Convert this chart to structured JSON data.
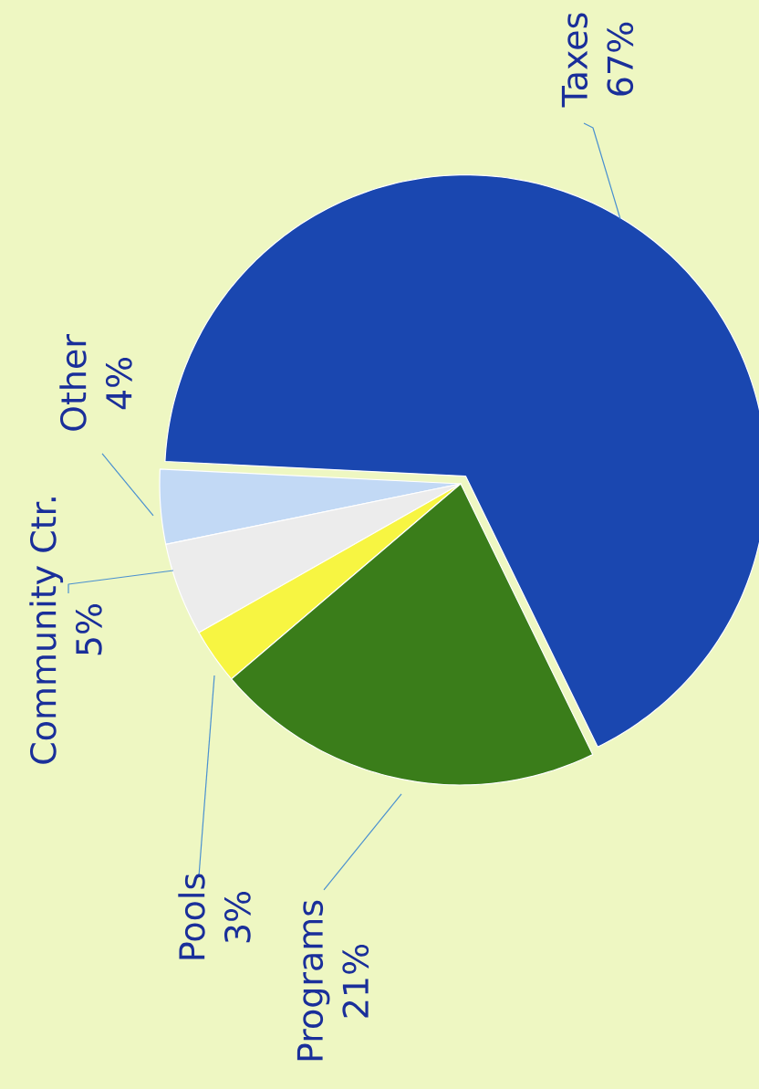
{
  "chart_data": {
    "type": "pie",
    "categories": [
      "Taxes",
      "Other",
      "Community Ctr.",
      "Pools",
      "Programs"
    ],
    "values": [
      67,
      4,
      5,
      3,
      21
    ],
    "value_labels": [
      "67%",
      "4%",
      "5%",
      "3%",
      "21%"
    ],
    "colors": [
      "#1a47b0",
      "#c2d9f5",
      "#ececec",
      "#f7f542",
      "#3a7d1a"
    ]
  }
}
